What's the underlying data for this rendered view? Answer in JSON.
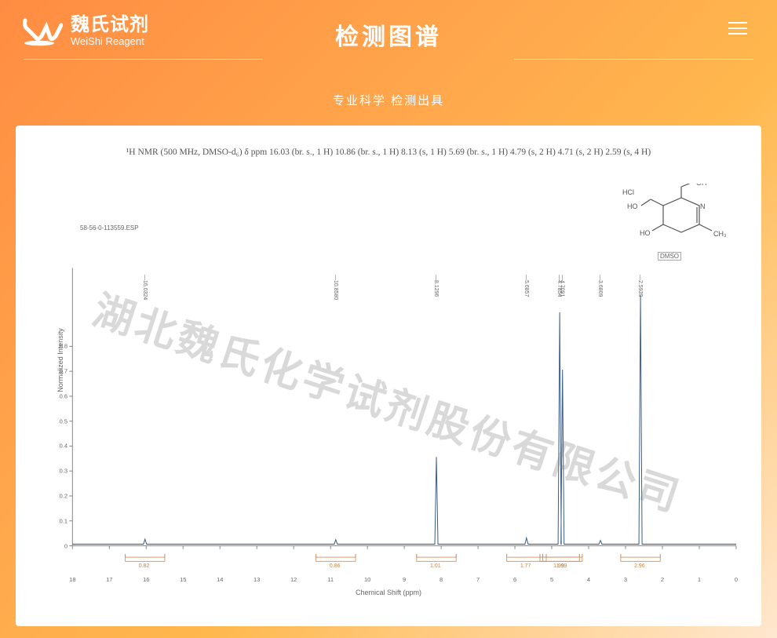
{
  "header": {
    "logo_zh": "魏氏试剂",
    "logo_en": "WeiShi Reagent",
    "title": "检测图谱",
    "subtitle": "专业科学 检测出具"
  },
  "nmr_description": "¹H NMR (500 MHz, DMSO-d₆) δ ppm 16.03 (br. s., 1 H) 10.86 (br. s., 1 H) 8.13 (s, 1 H) 5.69 (br. s., 1 H) 4.79 (s, 2 H) 4.71 (s, 2 H) 2.59 (s, 4 H)",
  "watermark_text": "湖北魏氏化学试剂股份有限公司",
  "spectrum": {
    "esp_label": "58-56-0-113559.ESP",
    "dmso_label": "DMSO",
    "xlabel": "Chemical Shift (ppm)",
    "ylabel": "Normalized Intensity",
    "xlim": [
      18,
      0
    ],
    "ylim": [
      0,
      1.0
    ],
    "x_ticks": [
      18,
      17,
      16,
      15,
      14,
      13,
      12,
      11,
      10,
      9,
      8,
      7,
      6,
      5,
      4,
      3,
      2,
      1,
      0
    ],
    "y_ticks": [
      0,
      0.1,
      0.2,
      0.3,
      0.4,
      0.5,
      0.6,
      0.7,
      0.8
    ],
    "baseline_color": "#3b5f8a",
    "axis_color": "#888888",
    "text_color": "#666666",
    "integration_color": "#cc8855",
    "peaks": [
      {
        "ppm": 16.0324,
        "label": "—16.0324",
        "height": 0.02,
        "integration": "0.82"
      },
      {
        "ppm": 10.858,
        "label": "—10.8580",
        "height": 0.018,
        "integration": "0.86"
      },
      {
        "ppm": 8.1296,
        "label": "—8.1296",
        "height": 0.35,
        "integration": "1.01"
      },
      {
        "ppm": 5.6857,
        "label": "—5.6857",
        "height": 0.025,
        "integration": "1.77"
      },
      {
        "ppm": 4.7854,
        "label": "—4.7854",
        "height": 0.93,
        "integration": "1.99"
      },
      {
        "ppm": 4.7091,
        "label": "—4.7091",
        "height": 0.7,
        "integration": "1.99"
      },
      {
        "ppm": 3.6809,
        "label": "—3.6809",
        "height": 0.015
      },
      {
        "ppm": 2.5939,
        "label": "—2.5939",
        "height": 1.6,
        "integration": "2.96"
      }
    ],
    "structure_labels": {
      "oh1": "OH",
      "oh2": "HO",
      "oh3": "HO",
      "hcl": "HCl",
      "ch3": "CH₃",
      "n": "N"
    }
  },
  "colors": {
    "header_text": "#ffffff",
    "panel_bg": "#ffffff",
    "watermark": "rgba(120,120,120,0.28)"
  }
}
